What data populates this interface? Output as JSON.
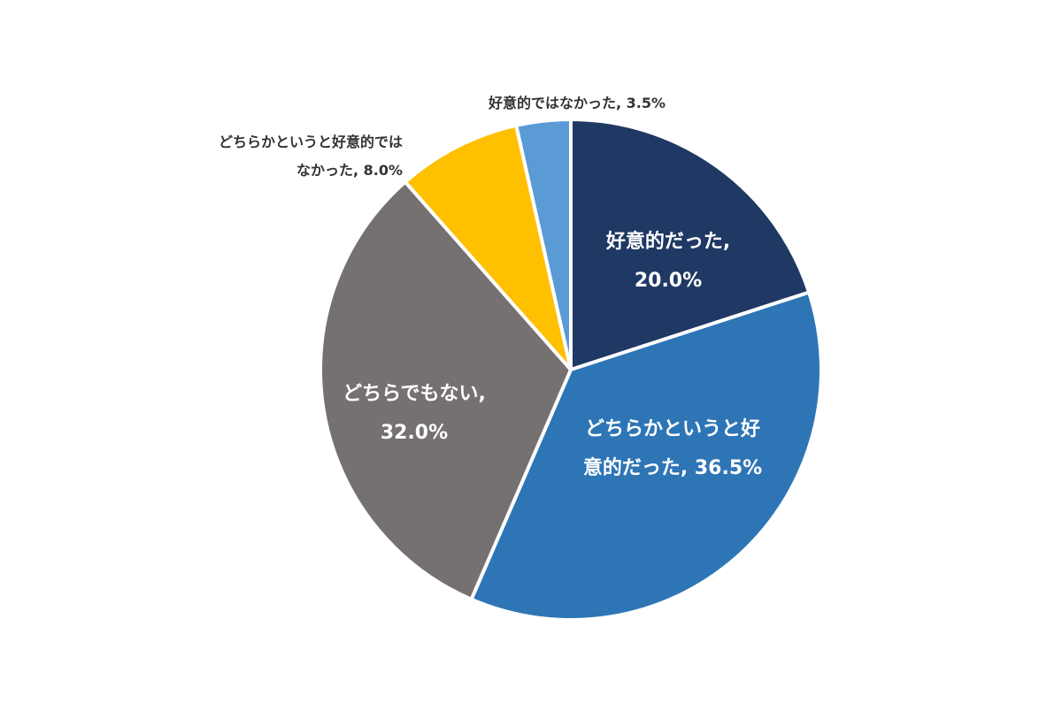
{
  "chart_data": {
    "type": "pie",
    "title": "",
    "start_angle_deg": 0,
    "direction": "clockwise",
    "slice_border_color": "#ffffff",
    "slices": [
      {
        "label": "好意的だった, 20.0%",
        "label_lines": [
          "好意的だった,",
          "20.0%"
        ],
        "value": 20.0,
        "color": "#1f3864",
        "label_color": "#ffffff",
        "label_position": "inside"
      },
      {
        "label": "どちらかというと好意的だった, 36.5%",
        "label_lines": [
          "どちらかというと好",
          "意的だった, 36.5%"
        ],
        "value": 36.5,
        "color": "#2e75b6",
        "label_color": "#ffffff",
        "label_position": "inside"
      },
      {
        "label": "どちらでもない, 32.0%",
        "label_lines": [
          "どちらでもない,",
          "32.0%"
        ],
        "value": 32.0,
        "color": "#767171",
        "label_color": "#ffffff",
        "label_position": "inside"
      },
      {
        "label": "どちらかというと好意的ではなかった, 8.0%",
        "label_lines": [
          "どちらかというと好意的では",
          "なかった, 8.0%"
        ],
        "value": 8.0,
        "color": "#ffc000",
        "label_color": "#333333",
        "label_position": "outside"
      },
      {
        "label": "好意的ではなかった, 3.5%",
        "label_lines": [
          "好意的ではなかった, 3.5%"
        ],
        "value": 3.5,
        "color": "#5b9bd5",
        "label_color": "#333333",
        "label_position": "outside"
      }
    ]
  }
}
